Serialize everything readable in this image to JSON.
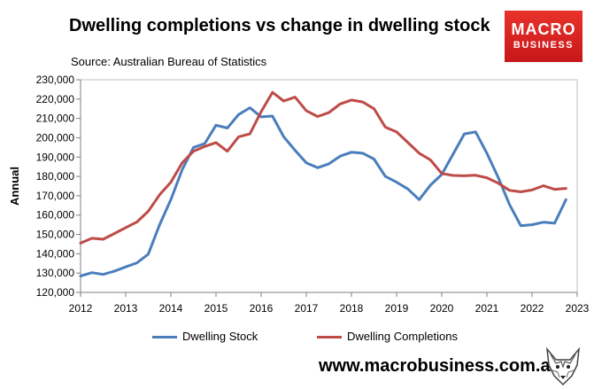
{
  "header": {
    "title": "Dwelling completions vs change in dwelling stock",
    "source": "Source: Australian Bureau of Statistics"
  },
  "logo": {
    "line1": "MACRO",
    "line2": "BUSINESS"
  },
  "footer": {
    "url": "www.macrobusiness.com.au"
  },
  "colors": {
    "stock": "#4a7ebb",
    "completions": "#be4b48",
    "logo": "#d9221f"
  },
  "chart_data": {
    "type": "line",
    "title": "Dwelling completions vs change in dwelling stock",
    "xlabel": "",
    "ylabel": "Annual",
    "xlim": [
      2012,
      2023
    ],
    "ylim": [
      120000,
      230000
    ],
    "x_ticks": [
      "2012",
      "2013",
      "2014",
      "2015",
      "2016",
      "2017",
      "2018",
      "2019",
      "2020",
      "2021",
      "2022",
      "2023"
    ],
    "y_ticks": [
      "120,000",
      "130,000",
      "140,000",
      "150,000",
      "160,000",
      "170,000",
      "180,000",
      "190,000",
      "200,000",
      "210,000",
      "220,000",
      "230,000"
    ],
    "legend_position": "bottom",
    "series": [
      {
        "name": "Dwelling Stock",
        "color": "#4a7ebb",
        "x": [
          2012.0,
          2012.25,
          2012.5,
          2012.75,
          2013.0,
          2013.25,
          2013.5,
          2013.75,
          2014.0,
          2014.25,
          2014.5,
          2014.75,
          2015.0,
          2015.25,
          2015.5,
          2015.75,
          2016.0,
          2016.25,
          2016.5,
          2016.75,
          2017.0,
          2017.25,
          2017.5,
          2017.75,
          2018.0,
          2018.25,
          2018.5,
          2018.75,
          2019.0,
          2019.25,
          2019.5,
          2019.75,
          2020.0,
          2020.25,
          2020.5,
          2020.75,
          2021.0,
          2021.25,
          2021.5,
          2021.75,
          2022.0,
          2022.25,
          2022.5,
          2022.75
        ],
        "values": [
          128500,
          130200,
          129300,
          131000,
          133200,
          135300,
          139800,
          155000,
          168000,
          183500,
          195000,
          197000,
          206500,
          205000,
          212000,
          215500,
          210800,
          211200,
          200500,
          193500,
          187000,
          184500,
          186500,
          190500,
          192500,
          192000,
          189000,
          180000,
          177000,
          173500,
          168000,
          175500,
          181000,
          191500,
          202000,
          203000,
          192000,
          179500,
          165500,
          154500,
          155000,
          156300,
          155800,
          168000
        ]
      },
      {
        "name": "Dwelling Completions",
        "color": "#be4b48",
        "x": [
          2012.0,
          2012.25,
          2012.5,
          2012.75,
          2013.0,
          2013.25,
          2013.5,
          2013.75,
          2014.0,
          2014.25,
          2014.5,
          2014.75,
          2015.0,
          2015.25,
          2015.5,
          2015.75,
          2016.0,
          2016.25,
          2016.5,
          2016.75,
          2017.0,
          2017.25,
          2017.5,
          2017.75,
          2018.0,
          2018.25,
          2018.5,
          2018.75,
          2019.0,
          2019.25,
          2019.5,
          2019.75,
          2020.0,
          2020.25,
          2020.5,
          2020.75,
          2021.0,
          2021.25,
          2021.5,
          2021.75,
          2022.0,
          2022.25,
          2022.5,
          2022.75
        ],
        "values": [
          145500,
          148000,
          147500,
          150500,
          153500,
          156500,
          162000,
          170500,
          177000,
          187000,
          193000,
          195500,
          197500,
          193000,
          200500,
          202000,
          213500,
          223500,
          219000,
          221000,
          214000,
          211000,
          213000,
          217500,
          219500,
          218500,
          215000,
          205500,
          203000,
          197500,
          192000,
          188500,
          181500,
          180500,
          180300,
          180600,
          179300,
          176500,
          172800,
          172000,
          173000,
          175200,
          173300,
          173800
        ]
      }
    ]
  }
}
